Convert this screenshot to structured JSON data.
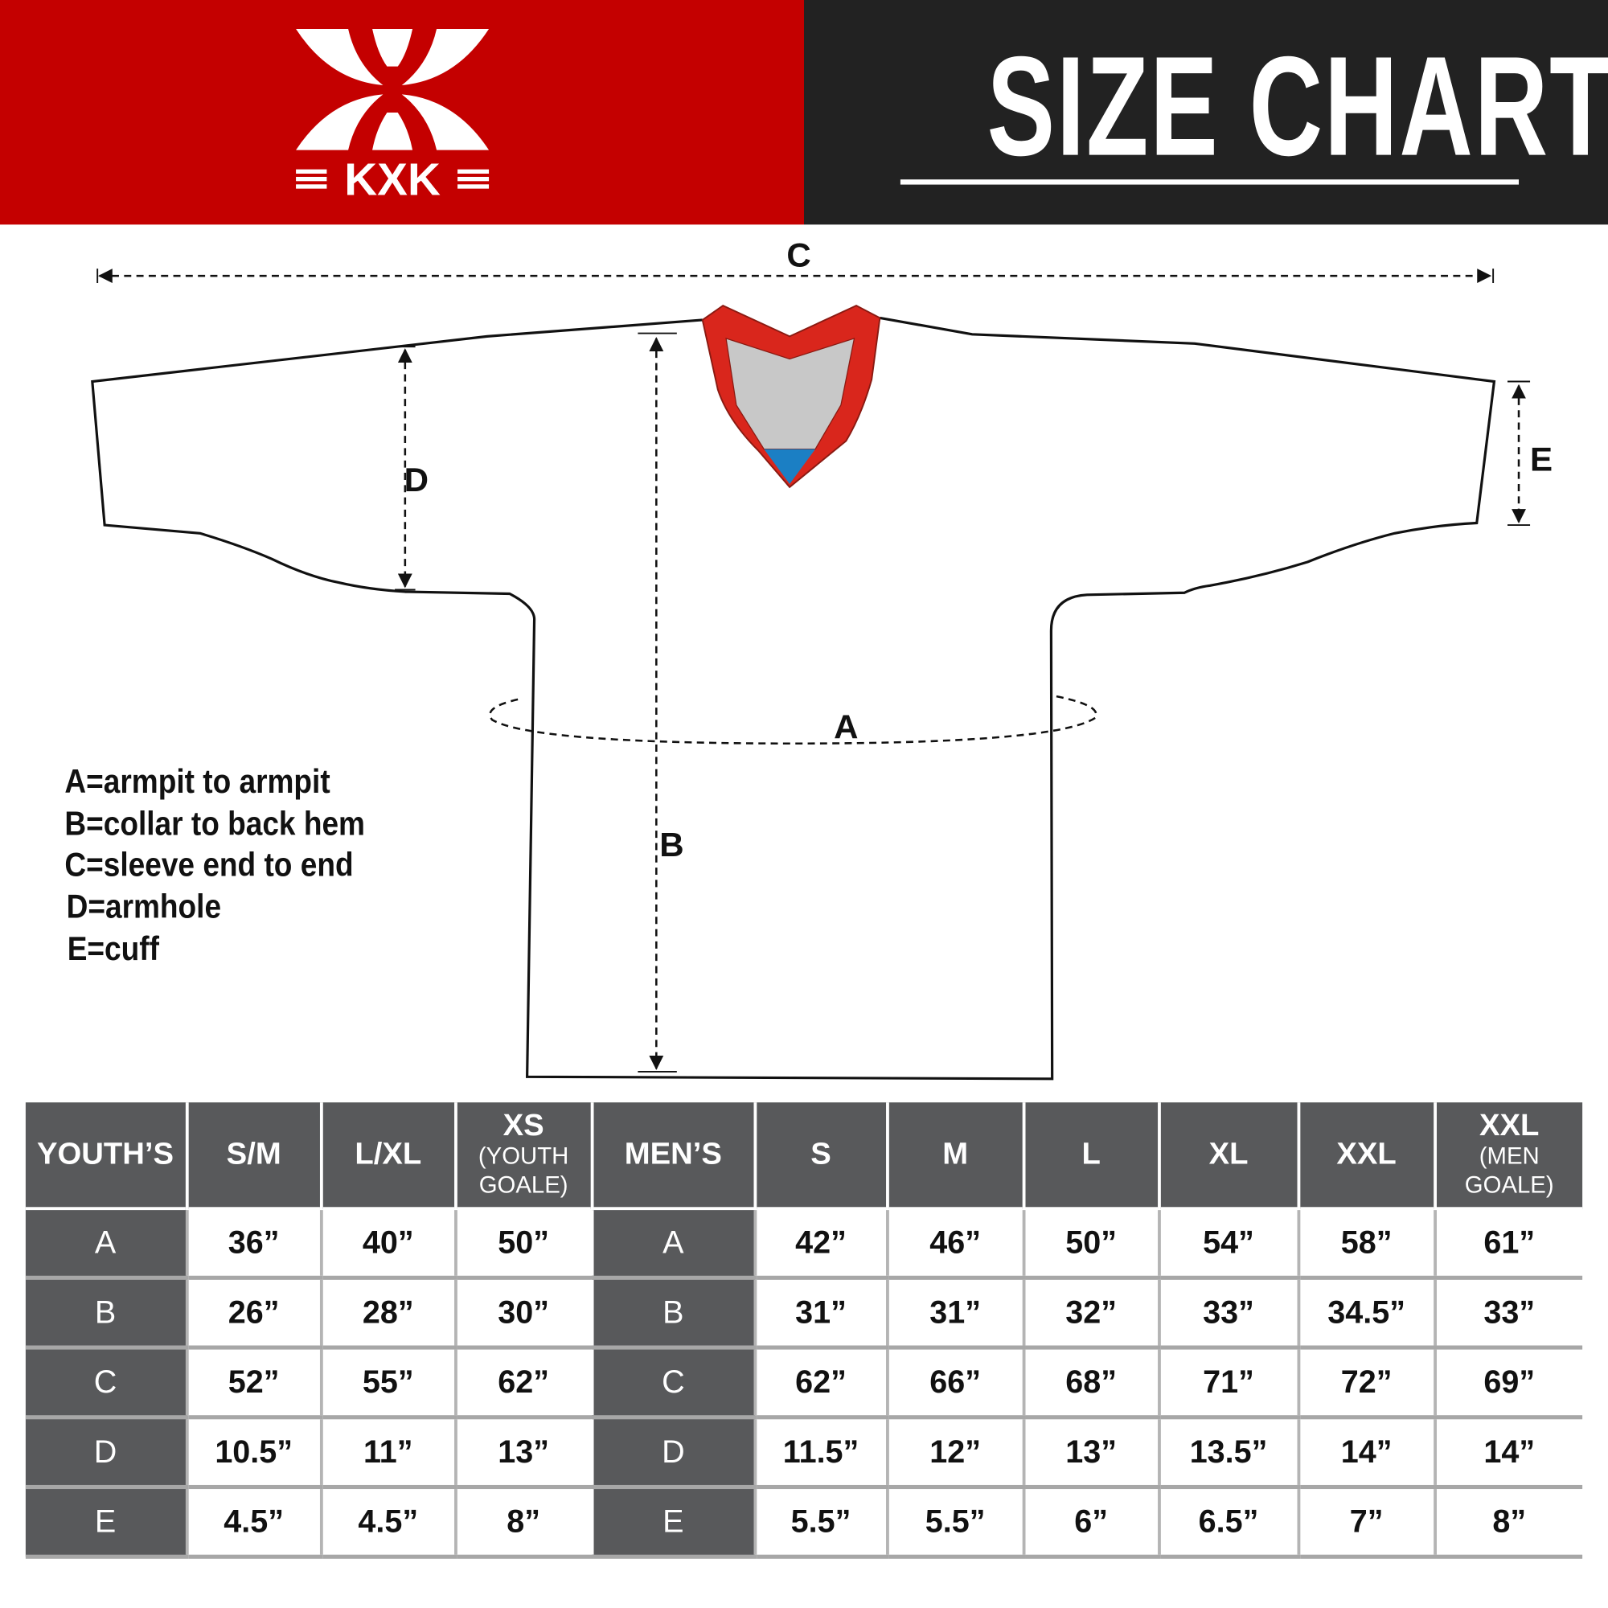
{
  "brand": {
    "logo_text": "KXK",
    "colors": {
      "header_red": "#c40000",
      "header_dark": "#222222",
      "collar_red": "#d9261c",
      "collar_gray": "#c8c8c8",
      "collar_blue": "#1b7fc4",
      "table_header": "#58595b"
    }
  },
  "header": {
    "title": "SIZE CHART"
  },
  "diagram": {
    "labels": {
      "a": "A",
      "b": "B",
      "c": "C",
      "d": "D",
      "e": "E"
    }
  },
  "legend": [
    "A=armpit to armpit",
    "B=collar to back hem",
    "C=sleeve end to end",
    "D=armhole",
    "E=cuff"
  ],
  "table": {
    "youth_header": "YOUTH’S",
    "men_header": "MEN’S",
    "youth_sizes": [
      {
        "label": "S/M",
        "sub": ""
      },
      {
        "label": "L/XL",
        "sub": ""
      },
      {
        "label": "XS",
        "sub": "(YOUTH GOALE)"
      }
    ],
    "men_sizes": [
      {
        "label": "S",
        "sub": ""
      },
      {
        "label": "M",
        "sub": ""
      },
      {
        "label": "L",
        "sub": ""
      },
      {
        "label": "XL",
        "sub": ""
      },
      {
        "label": "XXL",
        "sub": ""
      },
      {
        "label": "XXL",
        "sub": "(MEN GOALE)"
      }
    ],
    "rows": [
      {
        "label": "A",
        "youth": [
          "36”",
          "40”",
          "50”"
        ],
        "men": [
          "42”",
          "46”",
          "50”",
          "54”",
          "58”",
          "61”"
        ]
      },
      {
        "label": "B",
        "youth": [
          "26”",
          "28”",
          "30”"
        ],
        "men": [
          "31”",
          "31”",
          "32”",
          "33”",
          "34.5”",
          "33”"
        ]
      },
      {
        "label": "C",
        "youth": [
          "52”",
          "55”",
          "62”"
        ],
        "men": [
          "62”",
          "66”",
          "68”",
          "71”",
          "72”",
          "69”"
        ]
      },
      {
        "label": "D",
        "youth": [
          "10.5”",
          "11”",
          "13”"
        ],
        "men": [
          "11.5”",
          "12”",
          "13”",
          "13.5”",
          "14”",
          "14”"
        ]
      },
      {
        "label": "E",
        "youth": [
          "4.5”",
          "4.5”",
          "8”"
        ],
        "men": [
          "5.5”",
          "5.5”",
          "6”",
          "6.5”",
          "7”",
          "8”"
        ]
      }
    ]
  }
}
